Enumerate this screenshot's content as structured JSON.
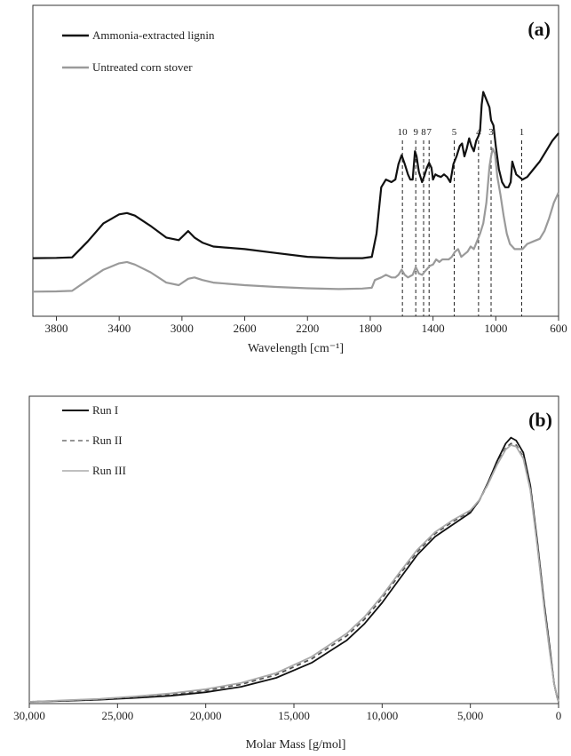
{
  "chart_data": [
    {
      "type": "line",
      "panel_label": "(a)",
      "xlabel": "Wavelength [cm⁻¹]",
      "ylabel": "",
      "x_reversed": true,
      "xlim": [
        3950,
        600
      ],
      "ylim": [
        0,
        1
      ],
      "x_ticks": [
        "3800",
        "3400",
        "3000",
        "2600",
        "2200",
        "1800",
        "1400",
        "1000",
        "600"
      ],
      "x_tick_values": [
        3800,
        3400,
        3000,
        2600,
        2200,
        1800,
        1400,
        1000,
        600
      ],
      "legend_position": "top-left",
      "series": [
        {
          "name": "Ammonia-extracted lignin",
          "color": "#111111",
          "points": [
            [
              3950,
              0.205
            ],
            [
              3800,
              0.206
            ],
            [
              3700,
              0.208
            ],
            [
              3600,
              0.27
            ],
            [
              3500,
              0.34
            ],
            [
              3400,
              0.375
            ],
            [
              3350,
              0.38
            ],
            [
              3300,
              0.37
            ],
            [
              3200,
              0.33
            ],
            [
              3100,
              0.285
            ],
            [
              3020,
              0.275
            ],
            [
              2960,
              0.31
            ],
            [
              2920,
              0.285
            ],
            [
              2870,
              0.265
            ],
            [
              2800,
              0.25
            ],
            [
              2600,
              0.24
            ],
            [
              2400,
              0.225
            ],
            [
              2200,
              0.21
            ],
            [
              2000,
              0.205
            ],
            [
              1850,
              0.205
            ],
            [
              1790,
              0.21
            ],
            [
              1760,
              0.3
            ],
            [
              1730,
              0.48
            ],
            [
              1700,
              0.51
            ],
            [
              1665,
              0.5
            ],
            [
              1640,
              0.51
            ],
            [
              1620,
              0.57
            ],
            [
              1600,
              0.605
            ],
            [
              1580,
              0.57
            ],
            [
              1560,
              0.53
            ],
            [
              1545,
              0.51
            ],
            [
              1530,
              0.51
            ],
            [
              1515,
              0.62
            ],
            [
              1505,
              0.6
            ],
            [
              1490,
              0.54
            ],
            [
              1470,
              0.5
            ],
            [
              1455,
              0.525
            ],
            [
              1440,
              0.555
            ],
            [
              1425,
              0.575
            ],
            [
              1410,
              0.555
            ],
            [
              1400,
              0.51
            ],
            [
              1385,
              0.53
            ],
            [
              1370,
              0.525
            ],
            [
              1350,
              0.52
            ],
            [
              1330,
              0.53
            ],
            [
              1310,
              0.52
            ],
            [
              1290,
              0.5
            ],
            [
              1270,
              0.57
            ],
            [
              1250,
              0.6
            ],
            [
              1230,
              0.64
            ],
            [
              1215,
              0.65
            ],
            [
              1200,
              0.6
            ],
            [
              1185,
              0.63
            ],
            [
              1170,
              0.67
            ],
            [
              1155,
              0.64
            ],
            [
              1140,
              0.62
            ],
            [
              1125,
              0.66
            ],
            [
              1110,
              0.68
            ],
            [
              1100,
              0.7
            ],
            [
              1090,
              0.8
            ],
            [
              1080,
              0.85
            ],
            [
              1060,
              0.82
            ],
            [
              1040,
              0.79
            ],
            [
              1030,
              0.74
            ],
            [
              1015,
              0.72
            ],
            [
              1000,
              0.64
            ],
            [
              980,
              0.55
            ],
            [
              960,
              0.5
            ],
            [
              940,
              0.48
            ],
            [
              920,
              0.48
            ],
            [
              905,
              0.5
            ],
            [
              895,
              0.58
            ],
            [
              885,
              0.56
            ],
            [
              870,
              0.53
            ],
            [
              850,
              0.52
            ],
            [
              830,
              0.51
            ],
            [
              800,
              0.52
            ],
            [
              760,
              0.55
            ],
            [
              720,
              0.58
            ],
            [
              680,
              0.62
            ],
            [
              640,
              0.66
            ],
            [
              600,
              0.69
            ]
          ]
        },
        {
          "name": "Untreated corn stover",
          "color": "#9a9a9a",
          "points": [
            [
              3950,
              0.075
            ],
            [
              3800,
              0.076
            ],
            [
              3700,
              0.078
            ],
            [
              3600,
              0.12
            ],
            [
              3500,
              0.16
            ],
            [
              3400,
              0.185
            ],
            [
              3350,
              0.19
            ],
            [
              3300,
              0.18
            ],
            [
              3200,
              0.15
            ],
            [
              3100,
              0.11
            ],
            [
              3020,
              0.1
            ],
            [
              2960,
              0.125
            ],
            [
              2920,
              0.13
            ],
            [
              2870,
              0.12
            ],
            [
              2800,
              0.11
            ],
            [
              2600,
              0.1
            ],
            [
              2400,
              0.093
            ],
            [
              2200,
              0.088
            ],
            [
              2000,
              0.085
            ],
            [
              1850,
              0.087
            ],
            [
              1790,
              0.09
            ],
            [
              1770,
              0.12
            ],
            [
              1730,
              0.13
            ],
            [
              1700,
              0.14
            ],
            [
              1665,
              0.13
            ],
            [
              1640,
              0.13
            ],
            [
              1620,
              0.14
            ],
            [
              1600,
              0.16
            ],
            [
              1580,
              0.14
            ],
            [
              1560,
              0.13
            ],
            [
              1530,
              0.14
            ],
            [
              1510,
              0.17
            ],
            [
              1490,
              0.145
            ],
            [
              1470,
              0.14
            ],
            [
              1450,
              0.155
            ],
            [
              1420,
              0.175
            ],
            [
              1400,
              0.18
            ],
            [
              1380,
              0.2
            ],
            [
              1360,
              0.19
            ],
            [
              1340,
              0.2
            ],
            [
              1320,
              0.2
            ],
            [
              1300,
              0.2
            ],
            [
              1280,
              0.21
            ],
            [
              1260,
              0.23
            ],
            [
              1240,
              0.24
            ],
            [
              1220,
              0.21
            ],
            [
              1200,
              0.22
            ],
            [
              1180,
              0.23
            ],
            [
              1160,
              0.25
            ],
            [
              1140,
              0.24
            ],
            [
              1120,
              0.27
            ],
            [
              1100,
              0.3
            ],
            [
              1080,
              0.34
            ],
            [
              1060,
              0.42
            ],
            [
              1040,
              0.56
            ],
            [
              1030,
              0.6
            ],
            [
              1020,
              0.63
            ],
            [
              1005,
              0.61
            ],
            [
              990,
              0.52
            ],
            [
              970,
              0.45
            ],
            [
              950,
              0.37
            ],
            [
              930,
              0.3
            ],
            [
              910,
              0.26
            ],
            [
              895,
              0.25
            ],
            [
              880,
              0.24
            ],
            [
              865,
              0.24
            ],
            [
              850,
              0.24
            ],
            [
              830,
              0.24
            ],
            [
              800,
              0.26
            ],
            [
              760,
              0.27
            ],
            [
              720,
              0.28
            ],
            [
              690,
              0.31
            ],
            [
              660,
              0.36
            ],
            [
              630,
              0.42
            ],
            [
              600,
              0.46
            ]
          ]
        }
      ],
      "annotations": [
        {
          "label": "10",
          "x": 1595
        },
        {
          "label": "9",
          "x": 1510
        },
        {
          "label": "8",
          "x": 1460
        },
        {
          "label": "7",
          "x": 1425
        },
        {
          "label": "5",
          "x": 1265
        },
        {
          "label": "4",
          "x": 1110
        },
        {
          "label": "3",
          "x": 1030
        },
        {
          "label": "1",
          "x": 835
        }
      ]
    },
    {
      "type": "line",
      "panel_label": "(b)",
      "xlabel": "Molar Mass [g/mol]",
      "ylabel": "",
      "x_reversed": true,
      "xlim": [
        30000,
        0
      ],
      "ylim": [
        0,
        1
      ],
      "x_ticks": [
        "30,000",
        "25,000",
        "20,000",
        "15,000",
        "10,000",
        "5,000",
        "0"
      ],
      "x_tick_values": [
        30000,
        25000,
        20000,
        15000,
        10000,
        5000,
        0
      ],
      "legend_position": "top-left",
      "series": [
        {
          "name": "Run I",
          "color": "#111111",
          "dash": "",
          "points": [
            [
              30000,
              0.0
            ],
            [
              28000,
              0.003
            ],
            [
              26000,
              0.007
            ],
            [
              24000,
              0.013
            ],
            [
              22000,
              0.02
            ],
            [
              20000,
              0.032
            ],
            [
              18000,
              0.05
            ],
            [
              16000,
              0.08
            ],
            [
              14000,
              0.13
            ],
            [
              12000,
              0.205
            ],
            [
              11000,
              0.26
            ],
            [
              10000,
              0.33
            ],
            [
              9000,
              0.41
            ],
            [
              8000,
              0.49
            ],
            [
              7000,
              0.55
            ],
            [
              6000,
              0.59
            ],
            [
              5000,
              0.63
            ],
            [
              4500,
              0.67
            ],
            [
              4000,
              0.73
            ],
            [
              3500,
              0.8
            ],
            [
              3000,
              0.86
            ],
            [
              2700,
              0.88
            ],
            [
              2400,
              0.87
            ],
            [
              2000,
              0.83
            ],
            [
              1600,
              0.72
            ],
            [
              1200,
              0.53
            ],
            [
              800,
              0.32
            ],
            [
              500,
              0.18
            ],
            [
              250,
              0.06
            ],
            [
              100,
              0.02
            ],
            [
              0,
              0.0
            ]
          ]
        },
        {
          "name": "Run II",
          "color": "#555555",
          "dash": "5,4",
          "points": [
            [
              30000,
              0.0
            ],
            [
              28000,
              0.004
            ],
            [
              26000,
              0.009
            ],
            [
              24000,
              0.016
            ],
            [
              22000,
              0.025
            ],
            [
              20000,
              0.038
            ],
            [
              18000,
              0.058
            ],
            [
              16000,
              0.09
            ],
            [
              14000,
              0.143
            ],
            [
              12000,
              0.22
            ],
            [
              11000,
              0.275
            ],
            [
              10000,
              0.345
            ],
            [
              9000,
              0.425
            ],
            [
              8000,
              0.5
            ],
            [
              7000,
              0.56
            ],
            [
              6000,
              0.6
            ],
            [
              5000,
              0.635
            ],
            [
              4500,
              0.67
            ],
            [
              4000,
              0.725
            ],
            [
              3500,
              0.79
            ],
            [
              3000,
              0.845
            ],
            [
              2700,
              0.86
            ],
            [
              2400,
              0.855
            ],
            [
              2000,
              0.815
            ],
            [
              1600,
              0.71
            ],
            [
              1200,
              0.52
            ],
            [
              800,
              0.31
            ],
            [
              500,
              0.17
            ],
            [
              250,
              0.06
            ],
            [
              100,
              0.02
            ],
            [
              0,
              0.0
            ]
          ]
        },
        {
          "name": "Run III",
          "color": "#aaaaaa",
          "dash": "",
          "points": [
            [
              30000,
              0.0
            ],
            [
              28000,
              0.005
            ],
            [
              26000,
              0.01
            ],
            [
              24000,
              0.018
            ],
            [
              22000,
              0.028
            ],
            [
              20000,
              0.042
            ],
            [
              18000,
              0.063
            ],
            [
              16000,
              0.096
            ],
            [
              14000,
              0.15
            ],
            [
              12000,
              0.228
            ],
            [
              11000,
              0.283
            ],
            [
              10000,
              0.353
            ],
            [
              9000,
              0.432
            ],
            [
              8000,
              0.507
            ],
            [
              7000,
              0.565
            ],
            [
              6000,
              0.605
            ],
            [
              5000,
              0.638
            ],
            [
              4500,
              0.672
            ],
            [
              4000,
              0.725
            ],
            [
              3500,
              0.788
            ],
            [
              3000,
              0.84
            ],
            [
              2700,
              0.855
            ],
            [
              2400,
              0.85
            ],
            [
              2000,
              0.81
            ],
            [
              1600,
              0.705
            ],
            [
              1200,
              0.515
            ],
            [
              800,
              0.305
            ],
            [
              500,
              0.165
            ],
            [
              250,
              0.06
            ],
            [
              100,
              0.02
            ],
            [
              0,
              0.0
            ]
          ]
        }
      ]
    }
  ]
}
